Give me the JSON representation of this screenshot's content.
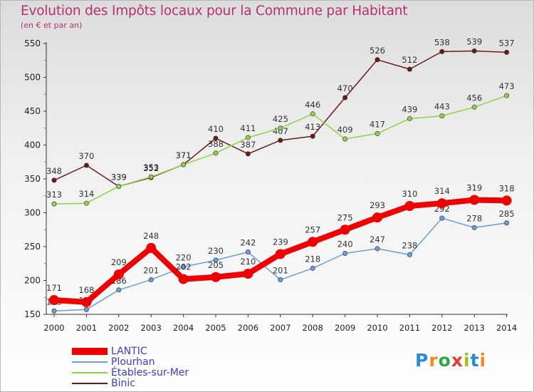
{
  "header": {
    "title": "Evolution des Impôts locaux pour la Commune par Habitant",
    "subtitle": "(en € et par an)"
  },
  "logo": {
    "text": "Proxiti",
    "colors": [
      "#2a8ad4",
      "#f08a1e",
      "#2aa84a",
      "#e83a30",
      "#a0c020",
      "#2a8ad4",
      "#f08a1e"
    ]
  },
  "chart_data": {
    "type": "line",
    "x": [
      2000,
      2001,
      2002,
      2003,
      2004,
      2005,
      2006,
      2007,
      2008,
      2009,
      2010,
      2011,
      2012,
      2013,
      2014
    ],
    "ylim": [
      150,
      550
    ],
    "yticks": [
      150,
      200,
      250,
      300,
      350,
      400,
      450,
      500,
      550
    ],
    "grid": false,
    "legend_position": "bottom-left",
    "series": [
      {
        "name": "Binic",
        "color": "#6b1a1a",
        "width": 1.5,
        "marker": 3.2,
        "values": [
          348,
          370,
          339,
          352,
          371,
          410,
          387,
          407,
          413,
          470,
          526,
          512,
          538,
          539,
          537
        ]
      },
      {
        "name": "Étables-sur-Mer",
        "color": "#8ed24a",
        "width": 1.5,
        "marker": 3.2,
        "values": [
          313,
          314,
          339,
          353,
          371,
          388,
          411,
          425,
          446,
          409,
          417,
          439,
          443,
          456,
          473
        ]
      },
      {
        "name": "Plourhan",
        "color": "#6a9ed2",
        "width": 1.5,
        "marker": 3.2,
        "values": [
          155,
          157,
          186,
          201,
          220,
          230,
          242,
          201,
          218,
          240,
          247,
          238,
          292,
          278,
          285
        ]
      },
      {
        "name": "LANTIC",
        "color": "#ee0000",
        "width": 8,
        "marker": 7,
        "values": [
          171,
          168,
          209,
          248,
          202,
          205,
          210,
          239,
          257,
          275,
          293,
          310,
          314,
          319,
          318
        ]
      }
    ]
  }
}
